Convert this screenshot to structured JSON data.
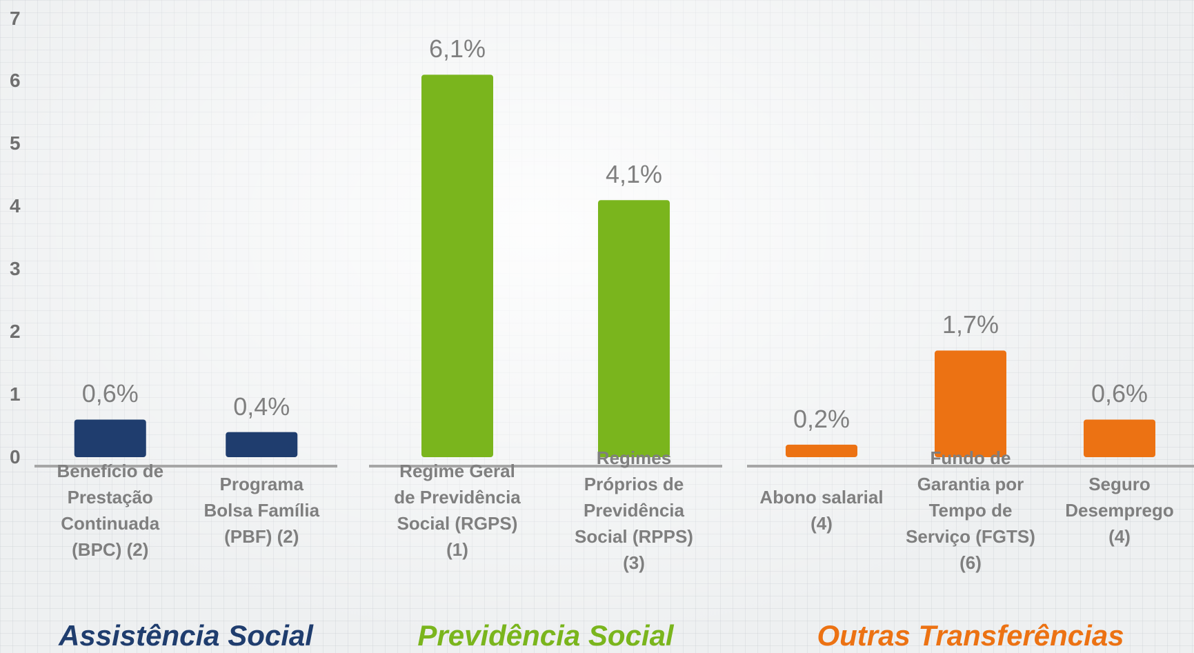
{
  "chart_data": {
    "type": "bar",
    "ylim": [
      0,
      7
    ],
    "yticks": [
      0,
      1,
      2,
      3,
      4,
      5,
      6,
      7
    ],
    "groups": [
      {
        "label": "Assistência Social",
        "color": "#1f3d6e",
        "categories": [
          "Benefício de Prestação Continuada (BPC) (2)",
          "Programa Bolsa Família (PBF) (2)"
        ],
        "values": [
          0.6,
          0.4
        ],
        "value_labels": [
          "0,6%",
          "0,4%"
        ]
      },
      {
        "label": "Previdência Social",
        "color": "#7ab51d",
        "categories": [
          "Regime Geral de Previdência Social (RGPS) (1)",
          "Regimes Próprios de Previdência Social (RPPS) (3)"
        ],
        "values": [
          6.1,
          4.1
        ],
        "value_labels": [
          "6,1%",
          "4,1%"
        ]
      },
      {
        "label": "Outras Transferências",
        "color": "#ec7213",
        "categories": [
          "Abono salarial (4)",
          "Fundo de Garantia por Tempo de Serviço (FGTS) (6)",
          "Seguro Desemprego (4)"
        ],
        "values": [
          0.2,
          1.7,
          0.6
        ],
        "value_labels": [
          "0,2%",
          "1,7%",
          "0,6%"
        ]
      }
    ]
  }
}
